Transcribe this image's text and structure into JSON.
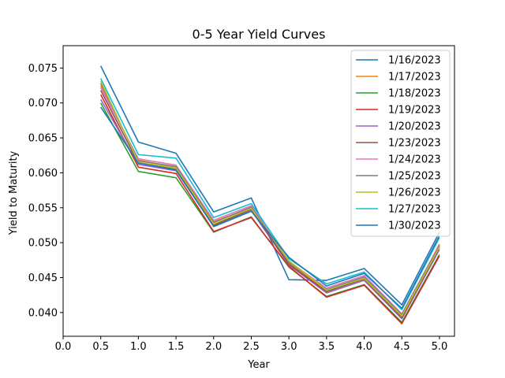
{
  "chart_data": {
    "type": "line",
    "title": "0-5 Year Yield Curves",
    "xlabel": "Year",
    "ylabel": "Yield to Maturity",
    "xlim": [
      0.0,
      5.2
    ],
    "ylim": [
      0.0366,
      0.0782
    ],
    "xticks": [
      0.0,
      0.5,
      1.0,
      1.5,
      2.0,
      2.5,
      3.0,
      3.5,
      4.0,
      4.5,
      5.0
    ],
    "xtick_labels": [
      "0.0",
      "0.5",
      "1.0",
      "1.5",
      "2.0",
      "2.5",
      "3.0",
      "3.5",
      "4.0",
      "4.5",
      "5.0"
    ],
    "yticks": [
      0.04,
      0.045,
      0.05,
      0.055,
      0.06,
      0.065,
      0.07,
      0.075
    ],
    "ytick_labels": [
      "0.040",
      "0.045",
      "0.050",
      "0.055",
      "0.060",
      "0.065",
      "0.070",
      "0.075"
    ],
    "grid": false,
    "legend_position": "top-right",
    "x": [
      0.5,
      1.0,
      1.5,
      2.0,
      2.5,
      3.0,
      3.5,
      4.0,
      4.5,
      5.0
    ],
    "series": [
      {
        "name": "1/16/2023",
        "color": "#1f77b4",
        "values": [
          0.0753,
          0.0644,
          0.0628,
          0.0544,
          0.0564,
          0.0447,
          0.0446,
          0.0463,
          0.0411,
          0.0515
        ]
      },
      {
        "name": "1/17/2023",
        "color": "#ff7f0e",
        "values": [
          0.0725,
          0.0618,
          0.0608,
          0.053,
          0.055,
          0.047,
          0.0432,
          0.045,
          0.0394,
          0.0498
        ]
      },
      {
        "name": "1/18/2023",
        "color": "#2ca02c",
        "values": [
          0.07,
          0.0602,
          0.0593,
          0.0515,
          0.0537,
          0.0465,
          0.0423,
          0.044,
          0.0386,
          0.0483
        ]
      },
      {
        "name": "1/19/2023",
        "color": "#d62728",
        "values": [
          0.0712,
          0.0608,
          0.0599,
          0.0516,
          0.0536,
          0.0466,
          0.0422,
          0.0439,
          0.0384,
          0.0481
        ]
      },
      {
        "name": "1/20/2023",
        "color": "#9467bd",
        "values": [
          0.0705,
          0.0612,
          0.0603,
          0.0524,
          0.0546,
          0.0468,
          0.0428,
          0.0446,
          0.0391,
          0.049
        ]
      },
      {
        "name": "1/23/2023",
        "color": "#8c564b",
        "values": [
          0.0718,
          0.0614,
          0.0605,
          0.0525,
          0.0548,
          0.0469,
          0.043,
          0.0448,
          0.0393,
          0.0493
        ]
      },
      {
        "name": "1/24/2023",
        "color": "#e377c2",
        "values": [
          0.0722,
          0.062,
          0.0611,
          0.0532,
          0.0553,
          0.0473,
          0.0435,
          0.0453,
          0.0398,
          0.0497
        ]
      },
      {
        "name": "1/25/2023",
        "color": "#7f7f7f",
        "values": [
          0.0728,
          0.0617,
          0.0609,
          0.0529,
          0.0551,
          0.0472,
          0.0433,
          0.0451,
          0.0397,
          0.0496
        ]
      },
      {
        "name": "1/26/2023",
        "color": "#bcbd22",
        "values": [
          0.0731,
          0.0615,
          0.0607,
          0.0527,
          0.0549,
          0.0474,
          0.0432,
          0.0449,
          0.0395,
          0.0494
        ]
      },
      {
        "name": "1/27/2023",
        "color": "#17becf",
        "values": [
          0.0735,
          0.0626,
          0.0621,
          0.0536,
          0.0556,
          0.0477,
          0.0441,
          0.0458,
          0.0404,
          0.0507
        ]
      },
      {
        "name": "1/30/2023",
        "color": "#1f77b4",
        "values": [
          0.0694,
          0.0614,
          0.0604,
          0.0523,
          0.0545,
          0.0479,
          0.0438,
          0.0456,
          0.0406,
          0.051
        ]
      }
    ]
  }
}
